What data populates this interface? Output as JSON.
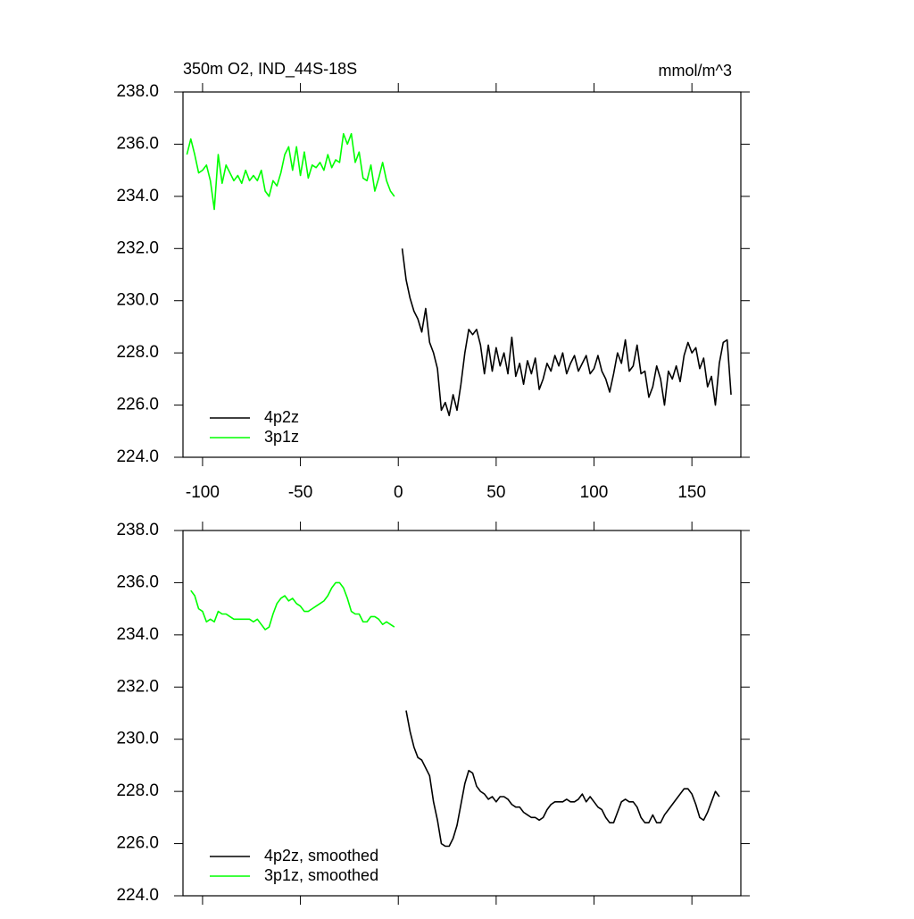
{
  "chart_data": [
    {
      "type": "line",
      "title": "350m O2, IND_44S-18S",
      "units": "mmol/m^3",
      "xlim": [
        -110,
        175
      ],
      "ylim": [
        224,
        238
      ],
      "xticks": [
        -100,
        -50,
        0,
        50,
        100,
        150
      ],
      "xtick_labels": true,
      "yticks": [
        {
          "value": 224,
          "label": "224.0"
        },
        {
          "value": 226,
          "label": "226.0"
        },
        {
          "value": 228,
          "label": "228.0"
        },
        {
          "value": 230,
          "label": "230.0"
        },
        {
          "value": 232,
          "label": "232.0"
        },
        {
          "value": 234,
          "label": "234.0"
        },
        {
          "value": 236,
          "label": "236.0"
        },
        {
          "value": 238,
          "label": "238.0"
        }
      ],
      "legend": "lower left",
      "series": [
        {
          "name": "4p2z",
          "color": "#000000",
          "x": [
            2,
            4,
            6,
            8,
            10,
            12,
            14,
            16,
            18,
            20,
            22,
            24,
            26,
            28,
            30,
            32,
            34,
            36,
            38,
            40,
            42,
            44,
            46,
            48,
            50,
            52,
            54,
            56,
            58,
            60,
            62,
            64,
            66,
            68,
            70,
            72,
            74,
            76,
            78,
            80,
            82,
            84,
            86,
            88,
            90,
            92,
            94,
            96,
            98,
            100,
            102,
            104,
            106,
            108,
            110,
            112,
            114,
            116,
            118,
            120,
            122,
            124,
            126,
            128,
            130,
            132,
            134,
            136,
            138,
            140,
            142,
            144,
            146,
            148,
            150,
            152,
            154,
            156,
            158,
            160,
            162,
            164,
            166,
            168,
            170
          ],
          "values": [
            232.0,
            230.8,
            230.1,
            229.6,
            229.3,
            228.8,
            229.7,
            228.4,
            228.0,
            227.4,
            225.8,
            226.1,
            225.6,
            226.4,
            225.8,
            226.8,
            228.0,
            228.9,
            228.7,
            228.9,
            228.3,
            227.2,
            228.3,
            227.3,
            228.2,
            227.5,
            228.0,
            227.2,
            228.6,
            227.1,
            227.6,
            226.8,
            227.7,
            227.2,
            227.8,
            226.6,
            227.0,
            227.6,
            227.3,
            227.9,
            227.5,
            228.0,
            227.2,
            227.6,
            227.9,
            227.3,
            227.6,
            227.9,
            227.2,
            227.4,
            227.9,
            227.3,
            227.0,
            226.5,
            227.2,
            228.0,
            227.6,
            228.5,
            227.3,
            227.5,
            228.3,
            227.2,
            227.3,
            226.3,
            226.7,
            227.5,
            227.0,
            226.0,
            227.3,
            227.0,
            227.5,
            226.9,
            227.9,
            228.4,
            228.0,
            228.2,
            227.4,
            227.8,
            226.7,
            227.1,
            226.0,
            227.6,
            228.4,
            228.5,
            226.4
          ]
        },
        {
          "name": "3p1z",
          "color": "#00ff00",
          "x": [
            -108,
            -106,
            -104,
            -102,
            -100,
            -98,
            -96,
            -94,
            -92,
            -90,
            -88,
            -86,
            -84,
            -82,
            -80,
            -78,
            -76,
            -74,
            -72,
            -70,
            -68,
            -66,
            -64,
            -62,
            -60,
            -58,
            -56,
            -54,
            -52,
            -50,
            -48,
            -46,
            -44,
            -42,
            -40,
            -38,
            -36,
            -34,
            -32,
            -30,
            -28,
            -26,
            -24,
            -22,
            -20,
            -18,
            -16,
            -14,
            -12,
            -10,
            -8,
            -6,
            -4,
            -2
          ],
          "values": [
            235.6,
            236.2,
            235.6,
            234.9,
            235.0,
            235.2,
            234.6,
            233.5,
            235.6,
            234.5,
            235.2,
            234.9,
            234.6,
            234.8,
            234.5,
            235.0,
            234.6,
            234.8,
            234.6,
            235.0,
            234.2,
            234.0,
            234.6,
            234.4,
            234.9,
            235.6,
            235.9,
            235.0,
            235.9,
            234.8,
            235.7,
            234.7,
            235.2,
            235.1,
            235.3,
            235.0,
            235.6,
            235.1,
            235.4,
            235.3,
            236.4,
            236.0,
            236.4,
            235.3,
            235.7,
            234.7,
            234.6,
            235.2,
            234.2,
            234.7,
            235.3,
            234.6,
            234.2,
            234.0
          ]
        }
      ]
    },
    {
      "type": "line",
      "xlim": [
        -110,
        175
      ],
      "ylim": [
        224,
        238
      ],
      "xticks": [
        -100,
        -50,
        0,
        50,
        100,
        150
      ],
      "xtick_labels": false,
      "yticks": [
        {
          "value": 224,
          "label": "224.0"
        },
        {
          "value": 226,
          "label": "226.0"
        },
        {
          "value": 228,
          "label": "228.0"
        },
        {
          "value": 230,
          "label": "230.0"
        },
        {
          "value": 232,
          "label": "232.0"
        },
        {
          "value": 234,
          "label": "234.0"
        },
        {
          "value": 236,
          "label": "236.0"
        },
        {
          "value": 238,
          "label": "238.0"
        }
      ],
      "legend": "lower left",
      "series": [
        {
          "name": "4p2z, smoothed",
          "color": "#000000",
          "x": [
            4,
            6,
            8,
            10,
            12,
            14,
            16,
            18,
            20,
            22,
            24,
            26,
            28,
            30,
            32,
            34,
            36,
            38,
            40,
            42,
            44,
            46,
            48,
            50,
            52,
            54,
            56,
            58,
            60,
            62,
            64,
            66,
            68,
            70,
            72,
            74,
            76,
            78,
            80,
            82,
            84,
            86,
            88,
            90,
            92,
            94,
            96,
            98,
            100,
            102,
            104,
            106,
            108,
            110,
            112,
            114,
            116,
            118,
            120,
            122,
            124,
            126,
            128,
            130,
            132,
            134,
            136,
            138,
            140,
            142,
            144,
            146,
            148,
            150,
            152,
            154,
            156,
            158,
            160,
            162,
            164
          ],
          "values": [
            231.1,
            230.3,
            229.7,
            229.3,
            229.2,
            228.9,
            228.6,
            227.6,
            226.9,
            226.0,
            225.9,
            225.9,
            226.2,
            226.7,
            227.5,
            228.3,
            228.8,
            228.7,
            228.2,
            228.0,
            227.9,
            227.7,
            227.8,
            227.6,
            227.8,
            227.8,
            227.7,
            227.5,
            227.4,
            227.4,
            227.2,
            227.1,
            227.0,
            227.0,
            226.9,
            227.0,
            227.3,
            227.5,
            227.6,
            227.6,
            227.6,
            227.7,
            227.6,
            227.6,
            227.7,
            227.9,
            227.6,
            227.8,
            227.6,
            227.4,
            227.3,
            227.0,
            226.8,
            226.8,
            227.2,
            227.6,
            227.7,
            227.6,
            227.6,
            227.4,
            227.0,
            226.8,
            226.8,
            227.1,
            226.8,
            226.8,
            227.1,
            227.3,
            227.5,
            227.7,
            227.9,
            228.1,
            228.1,
            227.9,
            227.5,
            227.0,
            226.9,
            227.2,
            227.6,
            228.0,
            227.8
          ]
        },
        {
          "name": "3p1z, smoothed",
          "color": "#00ff00",
          "x": [
            -106,
            -104,
            -102,
            -100,
            -98,
            -96,
            -94,
            -92,
            -90,
            -88,
            -86,
            -84,
            -82,
            -80,
            -78,
            -76,
            -74,
            -72,
            -70,
            -68,
            -66,
            -64,
            -62,
            -60,
            -58,
            -56,
            -54,
            -52,
            -50,
            -48,
            -46,
            -44,
            -42,
            -40,
            -38,
            -36,
            -34,
            -32,
            -30,
            -28,
            -26,
            -24,
            -22,
            -20,
            -18,
            -16,
            -14,
            -12,
            -10,
            -8,
            -6,
            -4,
            -2
          ],
          "values": [
            235.7,
            235.5,
            235.0,
            234.9,
            234.5,
            234.6,
            234.5,
            234.9,
            234.8,
            234.8,
            234.7,
            234.6,
            234.6,
            234.6,
            234.6,
            234.6,
            234.5,
            234.6,
            234.4,
            234.2,
            234.3,
            234.8,
            235.2,
            235.4,
            235.5,
            235.3,
            235.4,
            235.2,
            235.1,
            234.9,
            234.9,
            235.0,
            235.1,
            235.2,
            235.3,
            235.5,
            235.8,
            236.0,
            236.0,
            235.8,
            235.4,
            234.9,
            234.8,
            234.8,
            234.5,
            234.5,
            234.7,
            234.7,
            234.6,
            234.4,
            234.5,
            234.4,
            234.3
          ]
        }
      ]
    }
  ]
}
